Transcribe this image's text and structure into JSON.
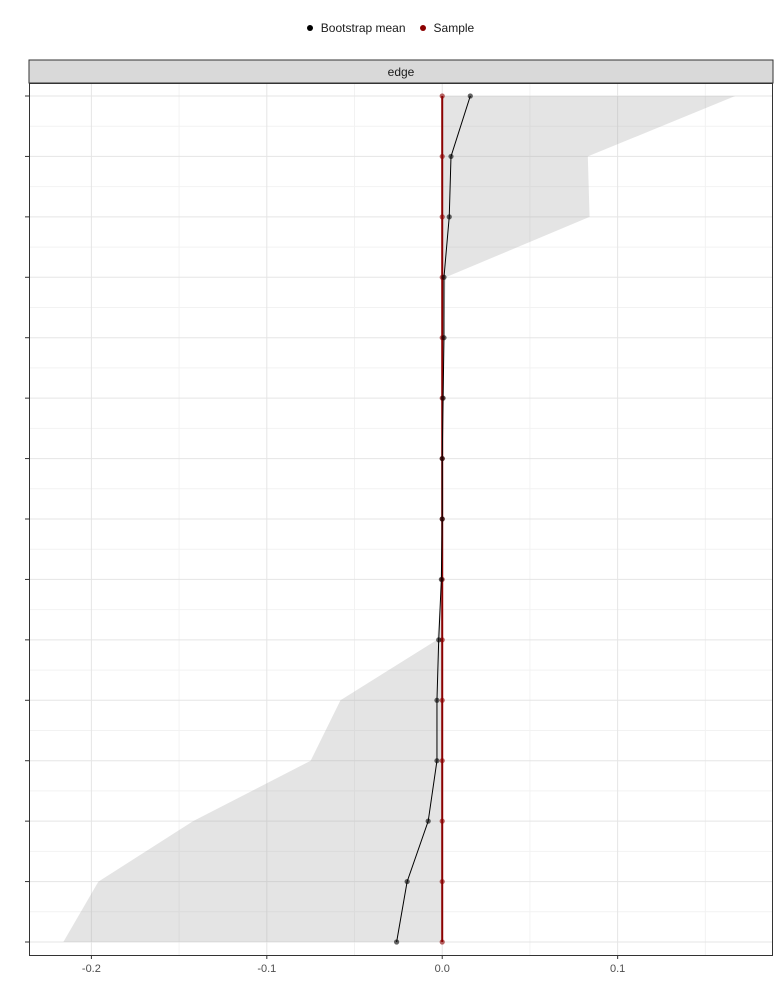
{
  "legend": {
    "items": [
      {
        "label": "Bootstrap mean",
        "color": "#000000"
      },
      {
        "label": "Sample",
        "color": "#8b0000"
      }
    ]
  },
  "chart_data": {
    "type": "line",
    "facet_label": "edge",
    "x_ticks": [
      -0.2,
      -0.1,
      0.0,
      0.1
    ],
    "x_tick_labels": [
      "-0.2",
      "-0.1",
      "0.0",
      "0.1"
    ],
    "xlim": [
      -0.235,
      0.188
    ],
    "n_edges": 15,
    "grid": true,
    "legend_position": "top",
    "series": [
      {
        "name": "Bootstrap mean",
        "color": "#000000",
        "values": [
          0.016,
          0.005,
          0.004,
          0.001,
          0.001,
          0.0005,
          0.0,
          0.0,
          -0.0005,
          -0.002,
          -0.003,
          -0.003,
          -0.008,
          -0.02,
          -0.026
        ]
      },
      {
        "name": "Sample",
        "color": "#8b0000",
        "values": [
          0,
          0,
          0,
          0,
          0,
          0,
          0,
          0,
          0,
          0,
          0,
          0,
          0,
          0,
          0
        ]
      }
    ],
    "ci_lower": [
      0.0,
      0.0,
      0.0,
      0.0,
      0.0,
      0.0,
      0.0,
      0.0,
      0.0,
      -0.003,
      -0.058,
      -0.075,
      -0.142,
      -0.196,
      -0.216
    ],
    "ci_upper": [
      0.167,
      0.083,
      0.084,
      0.002,
      0.001,
      0.001,
      0.0,
      0.0,
      0.0,
      0.0,
      0.0,
      0.0,
      0.0,
      0.0,
      0.0
    ]
  }
}
